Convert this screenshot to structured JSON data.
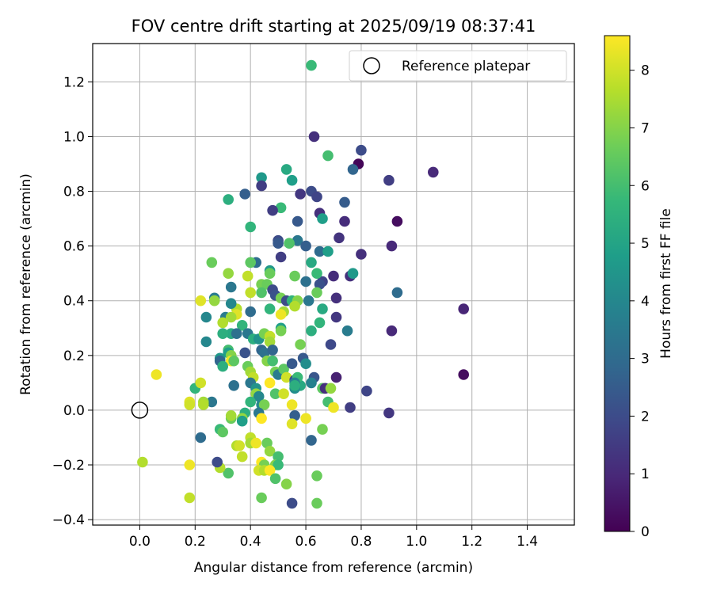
{
  "chart_data": {
    "type": "scatter",
    "title": "FOV centre drift starting at 2025/09/19 08:37:41",
    "xlabel": "Angular distance from reference (arcmin)",
    "ylabel": "Rotation from reference (arcmin)",
    "xlim": [
      -0.17,
      1.57
    ],
    "ylim": [
      -0.42,
      1.34
    ],
    "xticks": [
      0.0,
      0.2,
      0.4,
      0.6,
      0.8,
      1.0,
      1.2,
      1.4
    ],
    "xtick_labels": [
      "0.0",
      "0.2",
      "0.4",
      "0.6",
      "0.8",
      "1.0",
      "1.2",
      "1.4"
    ],
    "yticks": [
      -0.4,
      -0.2,
      0.0,
      0.2,
      0.4,
      0.6,
      0.8,
      1.0,
      1.2
    ],
    "ytick_labels": [
      "−0.4",
      "−0.2",
      "0.0",
      "0.2",
      "0.4",
      "0.6",
      "0.8",
      "1.0",
      "1.2"
    ],
    "grid": true,
    "legend": {
      "placement": "top-right",
      "entries": [
        "Reference platepar"
      ]
    },
    "reference_point": {
      "x": 0.0,
      "y": 0.0
    },
    "colorbar": {
      "label": "Hours from first FF file",
      "range": [
        0,
        8.6
      ],
      "ticks": [
        0,
        1,
        2,
        3,
        4,
        5,
        6,
        7,
        8
      ],
      "tick_labels": [
        "0",
        "1",
        "2",
        "3",
        "4",
        "5",
        "6",
        "7",
        "8"
      ],
      "colormap": "viridis",
      "stops": [
        "#440154",
        "#482878",
        "#3e4989",
        "#31688e",
        "#26828e",
        "#1f9e89",
        "#35b779",
        "#6ece58",
        "#b5de2b",
        "#fde725"
      ]
    },
    "points": [
      {
        "x": 0.79,
        "y": 0.9,
        "h": 0.1
      },
      {
        "x": 1.06,
        "y": 0.87,
        "h": 1.0
      },
      {
        "x": 0.93,
        "y": 0.69,
        "h": 0.3
      },
      {
        "x": 1.17,
        "y": 0.37,
        "h": 0.9
      },
      {
        "x": 1.17,
        "y": 0.13,
        "h": 0.3
      },
      {
        "x": 0.91,
        "y": 0.29,
        "h": 1.0
      },
      {
        "x": 0.91,
        "y": 0.6,
        "h": 1.0
      },
      {
        "x": 0.8,
        "y": 0.57,
        "h": 1.2
      },
      {
        "x": 0.9,
        "y": 0.84,
        "h": 1.6
      },
      {
        "x": 0.9,
        "y": -0.01,
        "h": 1.4
      },
      {
        "x": 0.82,
        "y": 0.07,
        "h": 1.8
      },
      {
        "x": 0.8,
        "y": 0.95,
        "h": 2.0
      },
      {
        "x": 0.93,
        "y": 0.43,
        "h": 3.0
      },
      {
        "x": 0.71,
        "y": 0.12,
        "h": 0.8
      },
      {
        "x": 0.76,
        "y": 0.49,
        "h": 1.2
      },
      {
        "x": 0.7,
        "y": 0.49,
        "h": 1.1
      },
      {
        "x": 0.71,
        "y": 0.41,
        "h": 1.2
      },
      {
        "x": 0.71,
        "y": 0.34,
        "h": 1.4
      },
      {
        "x": 0.69,
        "y": 0.24,
        "h": 1.9
      },
      {
        "x": 0.72,
        "y": 0.63,
        "h": 1.3
      },
      {
        "x": 0.74,
        "y": 0.69,
        "h": 1.1
      },
      {
        "x": 0.74,
        "y": 0.76,
        "h": 2.5
      },
      {
        "x": 0.77,
        "y": 0.88,
        "h": 2.8
      },
      {
        "x": 0.76,
        "y": 0.01,
        "h": 1.6
      },
      {
        "x": 0.63,
        "y": 1.0,
        "h": 1.2
      },
      {
        "x": 0.62,
        "y": 0.8,
        "h": 2.0
      },
      {
        "x": 0.64,
        "y": 0.78,
        "h": 1.8
      },
      {
        "x": 0.58,
        "y": 0.79,
        "h": 1.4
      },
      {
        "x": 0.65,
        "y": 0.72,
        "h": 1.2
      },
      {
        "x": 0.66,
        "y": 0.7,
        "h": 4.8
      },
      {
        "x": 0.57,
        "y": 0.69,
        "h": 2.4
      },
      {
        "x": 0.57,
        "y": 0.62,
        "h": 3.4
      },
      {
        "x": 0.6,
        "y": 0.6,
        "h": 2.6
      },
      {
        "x": 0.65,
        "y": 0.58,
        "h": 3.0
      },
      {
        "x": 0.62,
        "y": 0.54,
        "h": 5.2
      },
      {
        "x": 0.6,
        "y": 0.47,
        "h": 3.2
      },
      {
        "x": 0.66,
        "y": 0.47,
        "h": 1.8
      },
      {
        "x": 0.65,
        "y": 0.46,
        "h": 2.2
      },
      {
        "x": 0.61,
        "y": 0.4,
        "h": 3.4
      },
      {
        "x": 0.66,
        "y": 0.37,
        "h": 5.2
      },
      {
        "x": 0.65,
        "y": 0.32,
        "h": 5.6
      },
      {
        "x": 0.75,
        "y": 0.29,
        "h": 3.6
      },
      {
        "x": 0.77,
        "y": 0.5,
        "h": 4.6
      },
      {
        "x": 0.68,
        "y": 0.58,
        "h": 4.8
      },
      {
        "x": 0.64,
        "y": 0.5,
        "h": 5.8
      },
      {
        "x": 0.64,
        "y": 0.43,
        "h": 6.6
      },
      {
        "x": 0.62,
        "y": 0.29,
        "h": 5.4
      },
      {
        "x": 0.59,
        "y": 0.19,
        "h": 2.4
      },
      {
        "x": 0.6,
        "y": 0.17,
        "h": 4.2
      },
      {
        "x": 0.63,
        "y": 0.12,
        "h": 2.3
      },
      {
        "x": 0.62,
        "y": 0.1,
        "h": 3.8
      },
      {
        "x": 0.58,
        "y": 0.09,
        "h": 5.2
      },
      {
        "x": 0.66,
        "y": 0.08,
        "h": 6.4
      },
      {
        "x": 0.67,
        "y": 0.08,
        "h": 1.2
      },
      {
        "x": 0.69,
        "y": 0.08,
        "h": 7.2
      },
      {
        "x": 0.68,
        "y": 0.03,
        "h": 6.0
      },
      {
        "x": 0.7,
        "y": 0.01,
        "h": 8.4
      },
      {
        "x": 0.62,
        "y": -0.11,
        "h": 2.8
      },
      {
        "x": 0.6,
        "y": -0.03,
        "h": 8.4
      },
      {
        "x": 0.66,
        "y": -0.07,
        "h": 6.8
      },
      {
        "x": 0.64,
        "y": -0.24,
        "h": 6.6
      },
      {
        "x": 0.64,
        "y": -0.34,
        "h": 6.6
      },
      {
        "x": 0.55,
        "y": -0.34,
        "h": 2.0
      },
      {
        "x": 0.68,
        "y": 0.93,
        "h": 6.0
      },
      {
        "x": 0.62,
        "y": 1.26,
        "h": 5.8
      },
      {
        "x": 0.53,
        "y": 0.88,
        "h": 5.2
      },
      {
        "x": 0.55,
        "y": 0.84,
        "h": 4.8
      },
      {
        "x": 0.44,
        "y": 0.85,
        "h": 4.6
      },
      {
        "x": 0.44,
        "y": 0.82,
        "h": 1.6
      },
      {
        "x": 0.38,
        "y": 0.79,
        "h": 2.6
      },
      {
        "x": 0.32,
        "y": 0.77,
        "h": 5.4
      },
      {
        "x": 0.51,
        "y": 0.74,
        "h": 5.8
      },
      {
        "x": 0.48,
        "y": 0.73,
        "h": 1.6
      },
      {
        "x": 0.4,
        "y": 0.67,
        "h": 5.6
      },
      {
        "x": 0.5,
        "y": 0.62,
        "h": 2.0
      },
      {
        "x": 0.5,
        "y": 0.61,
        "h": 2.4
      },
      {
        "x": 0.54,
        "y": 0.61,
        "h": 6.2
      },
      {
        "x": 0.51,
        "y": 0.56,
        "h": 1.6
      },
      {
        "x": 0.42,
        "y": 0.54,
        "h": 3.0
      },
      {
        "x": 0.4,
        "y": 0.54,
        "h": 6.4
      },
      {
        "x": 0.26,
        "y": 0.54,
        "h": 6.6
      },
      {
        "x": 0.47,
        "y": 0.51,
        "h": 4.6
      },
      {
        "x": 0.47,
        "y": 0.5,
        "h": 6.6
      },
      {
        "x": 0.32,
        "y": 0.5,
        "h": 7.2
      },
      {
        "x": 0.39,
        "y": 0.49,
        "h": 7.8
      },
      {
        "x": 0.56,
        "y": 0.49,
        "h": 6.6
      },
      {
        "x": 0.44,
        "y": 0.46,
        "h": 6.8
      },
      {
        "x": 0.46,
        "y": 0.46,
        "h": 6.6
      },
      {
        "x": 0.33,
        "y": 0.45,
        "h": 3.4
      },
      {
        "x": 0.48,
        "y": 0.44,
        "h": 2.0
      },
      {
        "x": 0.4,
        "y": 0.43,
        "h": 7.8
      },
      {
        "x": 0.44,
        "y": 0.43,
        "h": 6.2
      },
      {
        "x": 0.49,
        "y": 0.42,
        "h": 2.2
      },
      {
        "x": 0.51,
        "y": 0.41,
        "h": 6.8
      },
      {
        "x": 0.53,
        "y": 0.4,
        "h": 2.0
      },
      {
        "x": 0.55,
        "y": 0.4,
        "h": 5.6
      },
      {
        "x": 0.57,
        "y": 0.4,
        "h": 7.0
      },
      {
        "x": 0.56,
        "y": 0.38,
        "h": 7.6
      },
      {
        "x": 0.52,
        "y": 0.36,
        "h": 7.4
      },
      {
        "x": 0.51,
        "y": 0.35,
        "h": 8.4
      },
      {
        "x": 0.47,
        "y": 0.37,
        "h": 5.6
      },
      {
        "x": 0.4,
        "y": 0.36,
        "h": 3.0
      },
      {
        "x": 0.35,
        "y": 0.37,
        "h": 7.6
      },
      {
        "x": 0.35,
        "y": 0.35,
        "h": 8.2
      },
      {
        "x": 0.33,
        "y": 0.39,
        "h": 4.0
      },
      {
        "x": 0.27,
        "y": 0.41,
        "h": 3.6
      },
      {
        "x": 0.27,
        "y": 0.4,
        "h": 7.2
      },
      {
        "x": 0.22,
        "y": 0.4,
        "h": 8.2
      },
      {
        "x": 0.24,
        "y": 0.34,
        "h": 4.0
      },
      {
        "x": 0.31,
        "y": 0.34,
        "h": 3.6
      },
      {
        "x": 0.33,
        "y": 0.34,
        "h": 7.4
      },
      {
        "x": 0.3,
        "y": 0.32,
        "h": 7.6
      },
      {
        "x": 0.37,
        "y": 0.31,
        "h": 5.6
      },
      {
        "x": 0.33,
        "y": 0.28,
        "h": 5.2
      },
      {
        "x": 0.35,
        "y": 0.28,
        "h": 3.2
      },
      {
        "x": 0.3,
        "y": 0.28,
        "h": 5.4
      },
      {
        "x": 0.39,
        "y": 0.28,
        "h": 3.4
      },
      {
        "x": 0.41,
        "y": 0.26,
        "h": 5.4
      },
      {
        "x": 0.43,
        "y": 0.26,
        "h": 4.4
      },
      {
        "x": 0.45,
        "y": 0.28,
        "h": 6.8
      },
      {
        "x": 0.47,
        "y": 0.27,
        "h": 7.8
      },
      {
        "x": 0.47,
        "y": 0.25,
        "h": 7.4
      },
      {
        "x": 0.51,
        "y": 0.3,
        "h": 4.8
      },
      {
        "x": 0.51,
        "y": 0.29,
        "h": 6.8
      },
      {
        "x": 0.58,
        "y": 0.24,
        "h": 6.8
      },
      {
        "x": 0.24,
        "y": 0.25,
        "h": 4.0
      },
      {
        "x": 0.32,
        "y": 0.22,
        "h": 6.0
      },
      {
        "x": 0.32,
        "y": 0.21,
        "h": 4.8
      },
      {
        "x": 0.33,
        "y": 0.2,
        "h": 7.0
      },
      {
        "x": 0.29,
        "y": 0.19,
        "h": 4.6
      },
      {
        "x": 0.29,
        "y": 0.18,
        "h": 2.8
      },
      {
        "x": 0.33,
        "y": 0.18,
        "h": 8.4
      },
      {
        "x": 0.34,
        "y": 0.18,
        "h": 6.4
      },
      {
        "x": 0.38,
        "y": 0.21,
        "h": 2.2
      },
      {
        "x": 0.44,
        "y": 0.22,
        "h": 2.8
      },
      {
        "x": 0.45,
        "y": 0.21,
        "h": 3.2
      },
      {
        "x": 0.48,
        "y": 0.22,
        "h": 2.8
      },
      {
        "x": 0.46,
        "y": 0.18,
        "h": 7.0
      },
      {
        "x": 0.48,
        "y": 0.18,
        "h": 6.0
      },
      {
        "x": 0.3,
        "y": 0.16,
        "h": 5.4
      },
      {
        "x": 0.39,
        "y": 0.16,
        "h": 6.6
      },
      {
        "x": 0.4,
        "y": 0.14,
        "h": 7.4
      },
      {
        "x": 0.41,
        "y": 0.12,
        "h": 7.8
      },
      {
        "x": 0.49,
        "y": 0.14,
        "h": 6.8
      },
      {
        "x": 0.5,
        "y": 0.13,
        "h": 3.6
      },
      {
        "x": 0.52,
        "y": 0.15,
        "h": 6.4
      },
      {
        "x": 0.53,
        "y": 0.12,
        "h": 8.0
      },
      {
        "x": 0.55,
        "y": 0.17,
        "h": 2.4
      },
      {
        "x": 0.56,
        "y": 0.11,
        "h": 2.0
      },
      {
        "x": 0.57,
        "y": 0.12,
        "h": 5.8
      },
      {
        "x": 0.4,
        "y": 0.1,
        "h": 3.4
      },
      {
        "x": 0.47,
        "y": 0.1,
        "h": 8.6
      },
      {
        "x": 0.56,
        "y": 0.1,
        "h": 3.8
      },
      {
        "x": 0.56,
        "y": 0.08,
        "h": 4.2
      },
      {
        "x": 0.56,
        "y": 0.09,
        "h": 5.4
      },
      {
        "x": 0.2,
        "y": 0.08,
        "h": 5.6
      },
      {
        "x": 0.42,
        "y": 0.08,
        "h": 4.4
      },
      {
        "x": 0.42,
        "y": 0.06,
        "h": 7.2
      },
      {
        "x": 0.43,
        "y": 0.05,
        "h": 4.0
      },
      {
        "x": 0.49,
        "y": 0.06,
        "h": 6.2
      },
      {
        "x": 0.52,
        "y": 0.06,
        "h": 8.0
      },
      {
        "x": 0.34,
        "y": 0.09,
        "h": 3.2
      },
      {
        "x": 0.22,
        "y": 0.1,
        "h": 8.0
      },
      {
        "x": 0.06,
        "y": 0.13,
        "h": 8.4
      },
      {
        "x": 0.4,
        "y": 0.03,
        "h": 5.6
      },
      {
        "x": 0.44,
        "y": 0.02,
        "h": 4.0
      },
      {
        "x": 0.45,
        "y": 0.02,
        "h": 6.8
      },
      {
        "x": 0.26,
        "y": 0.03,
        "h": 3.4
      },
      {
        "x": 0.23,
        "y": 0.03,
        "h": 7.4
      },
      {
        "x": 0.23,
        "y": 0.02,
        "h": 7.6
      },
      {
        "x": 0.18,
        "y": 0.03,
        "h": 8.2
      },
      {
        "x": 0.18,
        "y": 0.02,
        "h": 8.0
      },
      {
        "x": 0.55,
        "y": 0.02,
        "h": 8.4
      },
      {
        "x": 0.56,
        "y": -0.02,
        "h": 2.6
      },
      {
        "x": 0.43,
        "y": -0.01,
        "h": 3.4
      },
      {
        "x": 0.44,
        "y": -0.03,
        "h": 8.6
      },
      {
        "x": 0.38,
        "y": -0.01,
        "h": 5.4
      },
      {
        "x": 0.37,
        "y": -0.03,
        "h": 7.2
      },
      {
        "x": 0.37,
        "y": -0.04,
        "h": 4.8
      },
      {
        "x": 0.33,
        "y": -0.03,
        "h": 6.6
      },
      {
        "x": 0.33,
        "y": -0.02,
        "h": 7.4
      },
      {
        "x": 0.29,
        "y": -0.07,
        "h": 5.8
      },
      {
        "x": 0.3,
        "y": -0.08,
        "h": 6.4
      },
      {
        "x": 0.22,
        "y": -0.1,
        "h": 3.0
      },
      {
        "x": 0.55,
        "y": -0.05,
        "h": 8.2
      },
      {
        "x": 0.4,
        "y": -0.1,
        "h": 7.8
      },
      {
        "x": 0.4,
        "y": -0.12,
        "h": 7.4
      },
      {
        "x": 0.42,
        "y": -0.12,
        "h": 8.4
      },
      {
        "x": 0.46,
        "y": -0.12,
        "h": 6.6
      },
      {
        "x": 0.35,
        "y": -0.13,
        "h": 7.6
      },
      {
        "x": 0.36,
        "y": -0.13,
        "h": 8.0
      },
      {
        "x": 0.37,
        "y": -0.17,
        "h": 7.8
      },
      {
        "x": 0.47,
        "y": -0.15,
        "h": 7.2
      },
      {
        "x": 0.44,
        "y": -0.19,
        "h": 8.6
      },
      {
        "x": 0.45,
        "y": -0.2,
        "h": 6.8
      },
      {
        "x": 0.5,
        "y": -0.17,
        "h": 6.0
      },
      {
        "x": 0.49,
        "y": -0.2,
        "h": 7.0
      },
      {
        "x": 0.5,
        "y": -0.2,
        "h": 5.8
      },
      {
        "x": 0.43,
        "y": -0.22,
        "h": 8.0
      },
      {
        "x": 0.45,
        "y": -0.22,
        "h": 7.6
      },
      {
        "x": 0.47,
        "y": -0.22,
        "h": 8.6
      },
      {
        "x": 0.49,
        "y": -0.25,
        "h": 6.2
      },
      {
        "x": 0.53,
        "y": -0.27,
        "h": 7.0
      },
      {
        "x": 0.44,
        "y": -0.32,
        "h": 6.6
      },
      {
        "x": 0.32,
        "y": -0.23,
        "h": 6.2
      },
      {
        "x": 0.29,
        "y": -0.21,
        "h": 7.6
      },
      {
        "x": 0.28,
        "y": -0.19,
        "h": 2.0
      },
      {
        "x": 0.18,
        "y": -0.2,
        "h": 8.4
      },
      {
        "x": 0.01,
        "y": -0.19,
        "h": 7.6
      },
      {
        "x": 0.18,
        "y": -0.32,
        "h": 7.8
      }
    ]
  }
}
